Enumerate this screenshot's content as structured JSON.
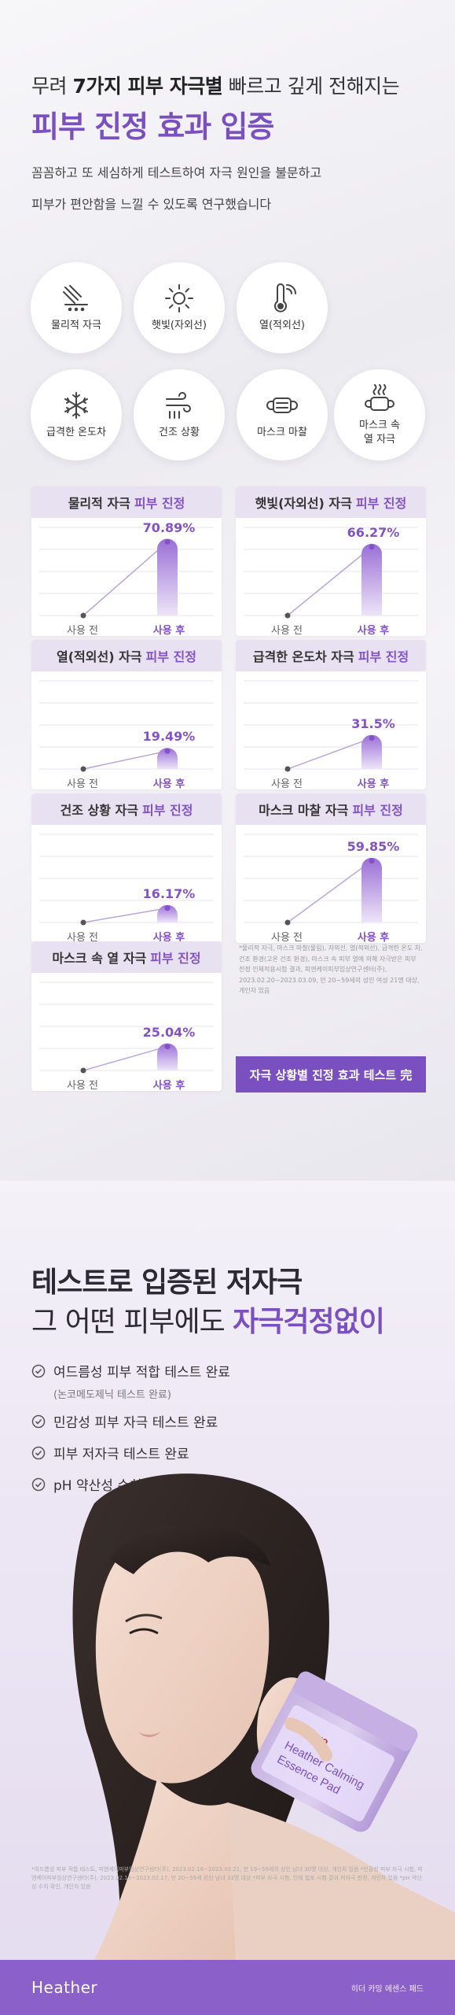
{
  "header": {
    "line1_prefix": "무려 ",
    "line1_bold": "7가지 피부 자극별",
    "line1_suffix": " 빠르고 깊게 전해지는",
    "line2": "피부 진정 효과 입증",
    "desc1": "꼼꼼하고 또 세심하게 테스트하여 자극 원인을 불문하고",
    "desc2": "피부가 편안함을 느낄 수 있도록 연구했습니다"
  },
  "stimuli": [
    {
      "label": "물리적 자극",
      "icon": "physical-stimulus-icon"
    },
    {
      "label": "햇빛(자외선)",
      "icon": "sun-icon"
    },
    {
      "label": "열(적외선)",
      "icon": "thermometer-icon"
    },
    {
      "label": "급격한 온도차",
      "icon": "snowflake-icon"
    },
    {
      "label": "건조 상황",
      "icon": "wind-icon"
    },
    {
      "label": "마스크 마찰",
      "icon": "mask-icon"
    },
    {
      "label": "마스크 속\n열 자극",
      "icon": "mask-heat-icon"
    }
  ],
  "cards": [
    {
      "title": "물리적 자극",
      "value": 70.89
    },
    {
      "title": "햇빛(자외선) 자극",
      "value": 66.27
    },
    {
      "title": "열(적외선) 자극",
      "value": 19.49
    },
    {
      "title": "급격한 온도차 자극",
      "value": 31.5
    },
    {
      "title": "건조 상황 자극",
      "value": 16.17
    },
    {
      "title": "마스크 마찰 자극",
      "value": 59.85
    },
    {
      "title": "마스크 속 열 자극",
      "value": 25.04
    }
  ],
  "card_common": {
    "accent_suffix": "피부 진정",
    "before_label": "사용 전",
    "after_label": "사용 후",
    "value_suffix": "%"
  },
  "note": {
    "text": "*물리적 자극, 마스크 마찰(물림), 자외선, 열(적외선), 급격한 온도 차, 건조 환경(고온 건조 환경), 마스크 속 피부 열에 의해 자극받은 피부 진정 인체적용시험 결과, 피엔케이피부임상연구센터(주), 2023.02.20~2023.03.09, 만 20~59세의 성인 여성 21명 대상, 개인차 있음",
    "banner": "자극 상황별 진정 효과 테스트 完"
  },
  "section2": {
    "title_line1": "테스트로 입증된 저자극",
    "title_line2_prefix": "그 어떤 피부에도 ",
    "title_line2_accent": "자극걱정없이",
    "checks": [
      "여드름성 피부 적합 테스트 완료",
      "민감성 피부 자극 테스트 완료",
      "피부 저자극 테스트 완료",
      "pH 약산성 수치 확인 완료"
    ],
    "check_sub": "(논코메도제닉 테스트 완료)",
    "product_brand": "ma:nyo",
    "product_name_1": "Heather Calming",
    "product_name_2": "Essence Pad",
    "fine_print": "*여드름성 피부 적합 테스트, 피엔케이피부임상연구센터(주), 2023.02.16~2023.03.21, 만 19~59세의 성인 남녀 30명 대상, 개인차 있음 *민감성 피부 자극 시험, 피엔케이피부임상연구센터(주), 2023.02.15~2023.02.17, 만 20~59세 성인 남녀 33명 대상 *피부 자극 시험, 인체 첩포 시험 결과 저자극 판정, 개인차 있음 *pH 약산성 수치 확인, 개인차 있음"
  },
  "footer": {
    "brand": "Heather",
    "product": "히더 카밍 에센스 패드"
  },
  "colors": {
    "accent": "#7a4fc0",
    "card_head": "#e7e1f1",
    "footer": "#8b60c9"
  }
}
